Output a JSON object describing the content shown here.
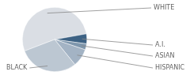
{
  "chart_data": {
    "type": "pie",
    "categories": [
      "WHITE",
      "A.I.",
      "ASIAN",
      "HISPANIC",
      "BLACK"
    ],
    "values": [
      53,
      5,
      3,
      9,
      30
    ],
    "colors": [
      "#dadee4",
      "#3d6284",
      "#7f97ad",
      "#a3b3c4",
      "#bcc7d2"
    ]
  }
}
